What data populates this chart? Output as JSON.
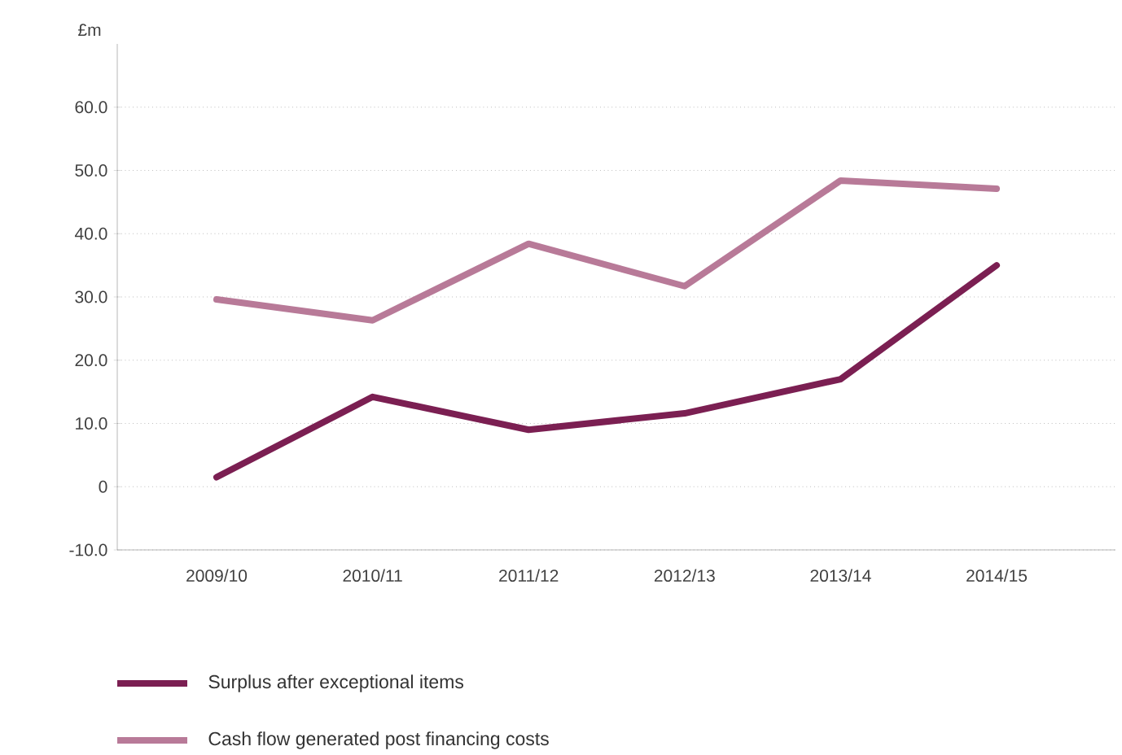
{
  "chart_data": {
    "type": "line",
    "ylabel": "£m",
    "categories": [
      "2009/10",
      "2010/11",
      "2011/12",
      "2012/13",
      "2013/14",
      "2014/15"
    ],
    "series": [
      {
        "name": "Surplus after exceptional items",
        "color": "#7b1f52",
        "values": [
          1.5,
          14.2,
          9.0,
          11.6,
          17.0,
          35.0
        ]
      },
      {
        "name": "Cash flow generated post financing costs",
        "color": "#b87a98",
        "values": [
          29.6,
          26.3,
          38.4,
          31.7,
          48.4,
          47.1
        ]
      }
    ],
    "ylim": [
      -10,
      70
    ],
    "yticks": [
      {
        "value": -10,
        "label": "-10.0"
      },
      {
        "value": 0,
        "label": "0"
      },
      {
        "value": 10,
        "label": "10.0"
      },
      {
        "value": 20,
        "label": "20.0"
      },
      {
        "value": 30,
        "label": "30.0"
      },
      {
        "value": 40,
        "label": "40.0"
      },
      {
        "value": 50,
        "label": "50.0"
      },
      {
        "value": 60,
        "label": "60.0"
      }
    ],
    "grid": "y",
    "legend": "bottom",
    "marker": "none",
    "line_style": "solid"
  }
}
